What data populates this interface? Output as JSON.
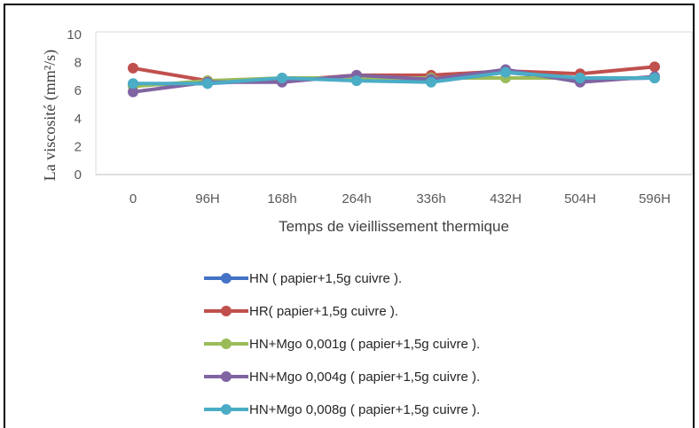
{
  "chart_data": {
    "type": "line",
    "categories": [
      "0",
      "96H",
      "168h",
      "264h",
      "336h",
      "432H",
      "504H",
      "596H"
    ],
    "ylabel": "La viscosité (mm²/s)",
    "xlabel": "Temps de vieillissement thermique",
    "ylim": [
      0,
      10
    ],
    "yticks": [
      "0",
      "2",
      "4",
      "6",
      "8",
      "10"
    ],
    "grid": "none",
    "legend_position": "bottom",
    "series": [
      {
        "name": "HN ( papier+1,5g cuivre ).",
        "color": "#4472C4",
        "values": [
          6.4,
          6.5,
          6.8,
          6.9,
          6.8,
          7.3,
          6.8,
          6.9
        ]
      },
      {
        "name": "HR( papier+1,5g cuivre ).",
        "color": "#C0504D",
        "values": [
          7.6,
          6.7,
          6.7,
          7.1,
          7.1,
          7.4,
          7.2,
          7.7
        ]
      },
      {
        "name": "HN+Mgo 0,001g ( papier+1,5g cuivre ).",
        "color": "#9BBB59",
        "values": [
          6.3,
          6.7,
          6.9,
          6.9,
          6.9,
          6.9,
          6.9,
          6.9
        ]
      },
      {
        "name": "HN+Mgo 0,004g ( papier+1,5g cuivre ).",
        "color": "#8064A2",
        "values": [
          5.9,
          6.6,
          6.6,
          7.1,
          6.8,
          7.5,
          6.6,
          7.0
        ]
      },
      {
        "name": "HN+Mgo 0,008g ( papier+1,5g cuivre ).",
        "color": "#4BACC6",
        "values": [
          6.5,
          6.5,
          6.9,
          6.7,
          6.6,
          7.3,
          6.9,
          6.9
        ]
      }
    ]
  }
}
